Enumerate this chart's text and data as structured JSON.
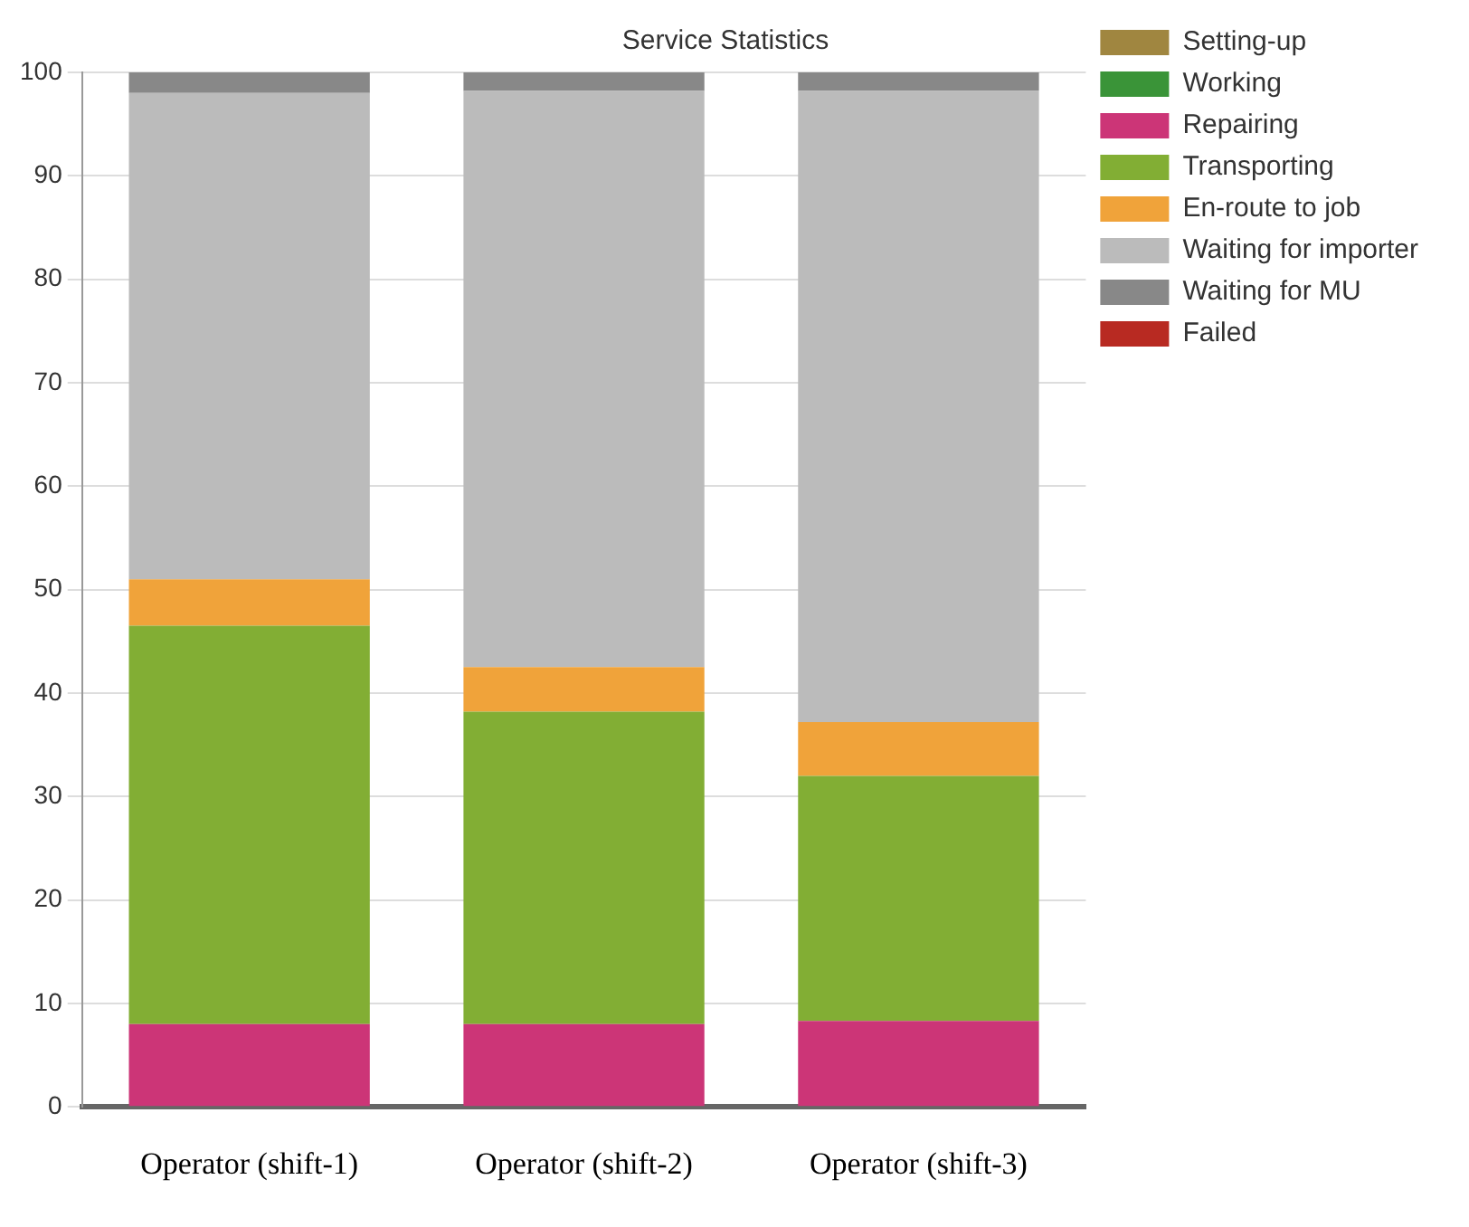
{
  "chart_data": {
    "type": "bar",
    "title": "Service Statistics",
    "categories": [
      "Operator (shift-1)",
      "Operator (shift-2)",
      "Operator (shift-3)"
    ],
    "stacked": true,
    "ylim": [
      0,
      100
    ],
    "yticks": [
      0,
      10,
      20,
      30,
      40,
      50,
      60,
      70,
      80,
      90,
      100
    ],
    "grid": "y",
    "legend": "top right",
    "series": [
      {
        "name": "Setting-up",
        "color": "#a08640",
        "values": [
          0,
          0,
          0
        ]
      },
      {
        "name": "Working",
        "color": "#3a9438",
        "values": [
          0,
          0,
          0
        ]
      },
      {
        "name": "Repairing",
        "color": "#cc3577",
        "values": [
          8,
          8,
          8.3
        ]
      },
      {
        "name": "Transporting",
        "color": "#82ae34",
        "values": [
          38.5,
          30.2,
          23.7
        ]
      },
      {
        "name": "En-route to job",
        "color": "#f0a33a",
        "values": [
          4.5,
          4.3,
          5.2
        ]
      },
      {
        "name": "Waiting for importer",
        "color": "#bbbbbb",
        "values": [
          47,
          55.7,
          61
        ]
      },
      {
        "name": "Waiting for MU",
        "color": "#888888",
        "values": [
          2,
          1.8,
          1.8
        ]
      },
      {
        "name": "Failed",
        "color": "#b82a22",
        "values": [
          0,
          0,
          0
        ]
      }
    ]
  }
}
